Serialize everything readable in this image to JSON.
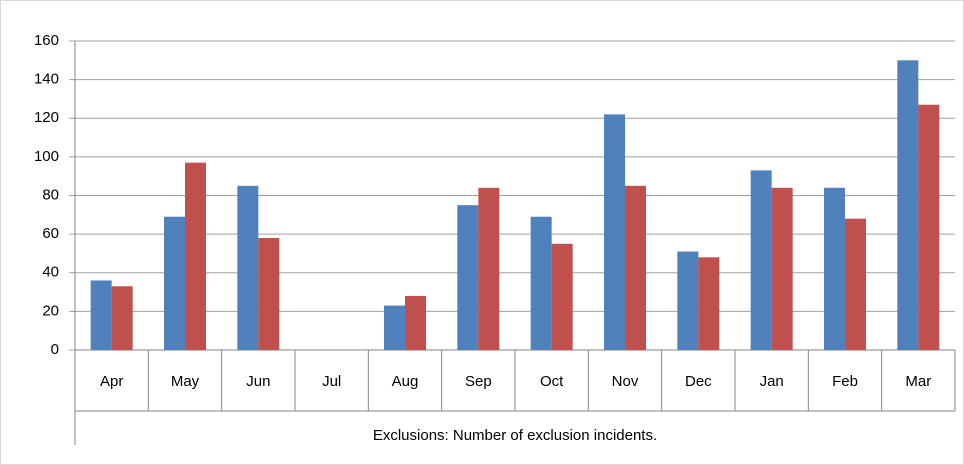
{
  "chart_data": {
    "type": "bar",
    "categories": [
      "Apr",
      "May",
      "Jun",
      "Jul",
      "Aug",
      "Sep",
      "Oct",
      "Nov",
      "Dec",
      "Jan",
      "Feb",
      "Mar"
    ],
    "series": [
      {
        "color": "#4f81bd",
        "values": [
          36,
          69,
          85,
          null,
          23,
          75,
          69,
          122,
          51,
          93,
          84,
          150
        ]
      },
      {
        "color": "#c0504d",
        "values": [
          33,
          97,
          58,
          null,
          28,
          84,
          55,
          85,
          48,
          84,
          68,
          127
        ]
      }
    ],
    "ylim": [
      0,
      160
    ],
    "yticks": [
      0,
      20,
      40,
      60,
      80,
      100,
      120,
      140,
      160
    ],
    "grid": true,
    "x_label": "Exclusions: Number of exclusion incidents."
  }
}
